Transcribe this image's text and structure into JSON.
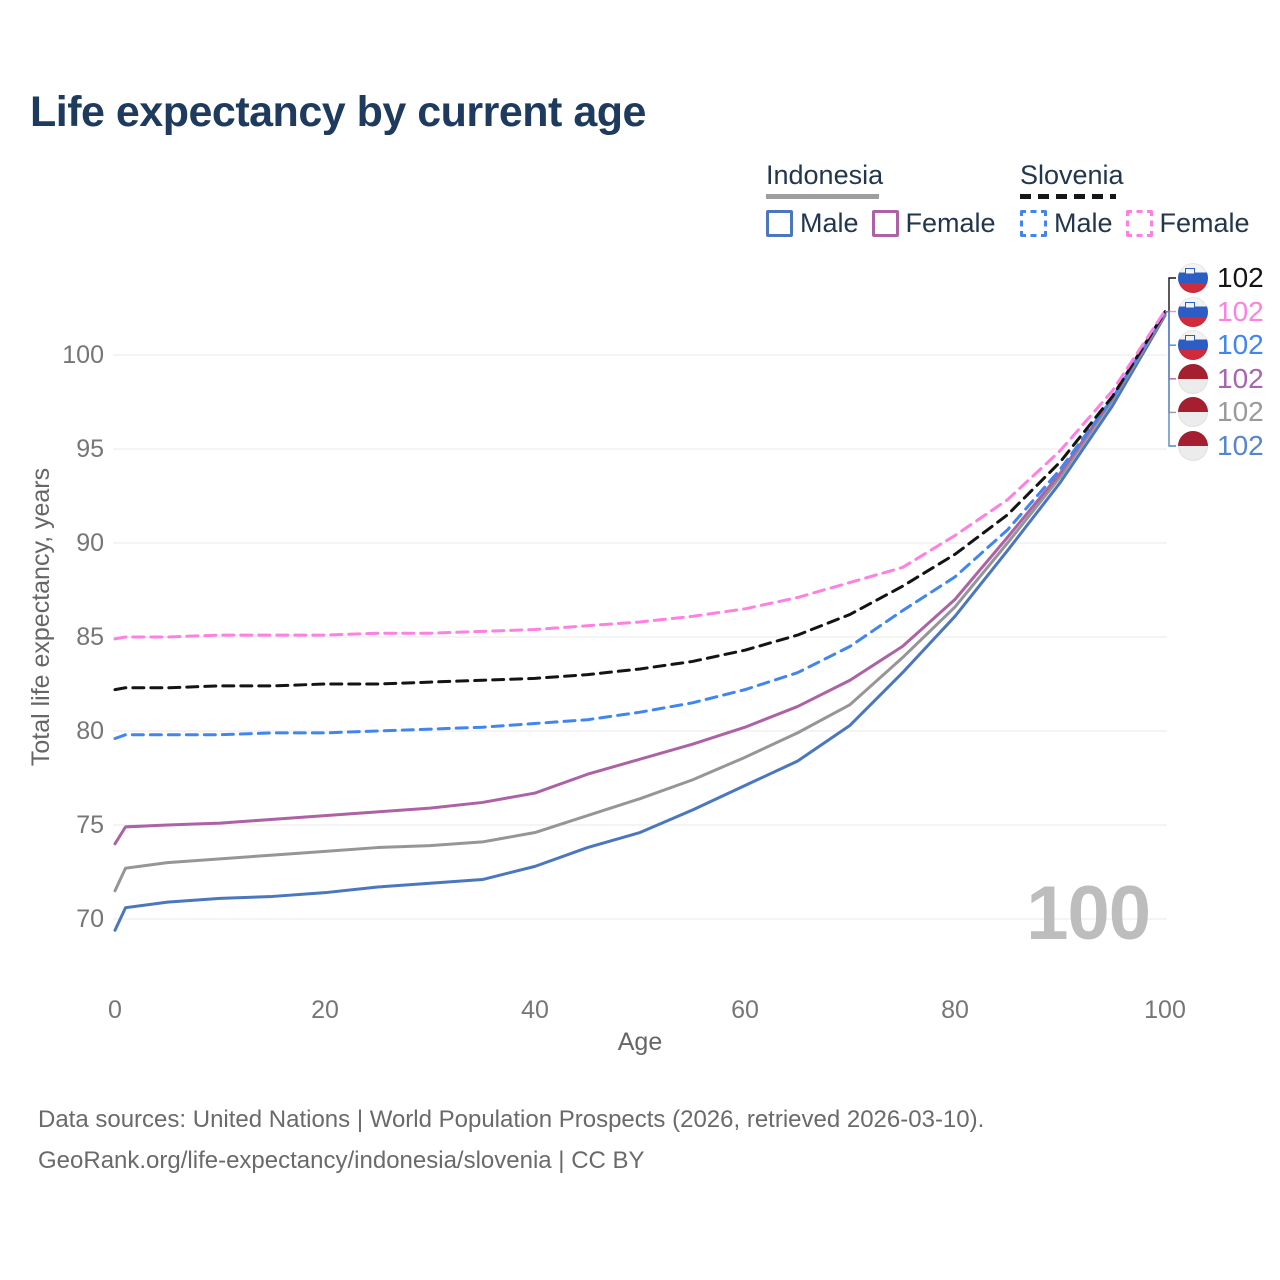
{
  "title": "Life expectancy by current age",
  "watermark": "100",
  "legend": {
    "groups": [
      {
        "label": "Indonesia",
        "line_style": "solid",
        "underline_color": "#9e9e9e",
        "items": [
          {
            "label": "Male",
            "color": "#4a77bd"
          },
          {
            "label": "Female",
            "color": "#ad62a6"
          }
        ]
      },
      {
        "label": "Slovenia",
        "line_style": "dashed",
        "underline_color": "#161616",
        "items": [
          {
            "label": "Male",
            "color": "#4186f0"
          },
          {
            "label": "Female",
            "color": "#ff80e0"
          }
        ]
      }
    ]
  },
  "chart_data": {
    "type": "line",
    "title": "Life expectancy by current age",
    "xlabel": "Age",
    "ylabel": "Total life expectancy, years",
    "x_ticks": [
      0,
      20,
      40,
      60,
      80,
      100
    ],
    "y_ticks": [
      70,
      75,
      80,
      85,
      90,
      95,
      100
    ],
    "xlim": [
      0,
      100
    ],
    "ylim": [
      69,
      103
    ],
    "grid": "horizontal-only",
    "legend_position": "top-right",
    "x": [
      0,
      1,
      5,
      10,
      15,
      20,
      25,
      30,
      35,
      40,
      45,
      50,
      55,
      60,
      65,
      70,
      75,
      80,
      85,
      90,
      95,
      100
    ],
    "series": [
      {
        "name": "Indonesia Male",
        "country": "Indonesia",
        "sex": "male",
        "color": "#4a77bd",
        "dash": false,
        "values": [
          69.4,
          70.6,
          70.9,
          71.1,
          71.2,
          71.4,
          71.7,
          71.9,
          72.1,
          72.8,
          73.8,
          74.6,
          75.8,
          77.1,
          78.4,
          80.3,
          83.1,
          86.1,
          89.6,
          93.2,
          97.3,
          102.1
        ]
      },
      {
        "name": "Indonesia",
        "country": "Indonesia",
        "sex": "both",
        "color": "#969696",
        "dash": false,
        "values": [
          71.5,
          72.7,
          73.0,
          73.2,
          73.4,
          73.6,
          73.8,
          73.9,
          74.1,
          74.6,
          75.5,
          76.4,
          77.4,
          78.6,
          79.9,
          81.4,
          83.9,
          86.6,
          90.0,
          93.5,
          97.6,
          102.15
        ]
      },
      {
        "name": "Indonesia Female",
        "country": "Indonesia",
        "sex": "female",
        "color": "#ad62a6",
        "dash": false,
        "values": [
          74.0,
          74.9,
          75.0,
          75.1,
          75.3,
          75.5,
          75.7,
          75.9,
          76.2,
          76.7,
          77.7,
          78.5,
          79.3,
          80.2,
          81.3,
          82.7,
          84.5,
          87.0,
          90.3,
          93.7,
          97.7,
          102.2
        ]
      },
      {
        "name": "Slovenia Male",
        "country": "Slovenia",
        "sex": "male",
        "color": "#4186f0",
        "dash": true,
        "values": [
          79.6,
          79.8,
          79.8,
          79.8,
          79.9,
          79.9,
          80.0,
          80.1,
          80.2,
          80.4,
          80.6,
          81.0,
          81.5,
          82.2,
          83.1,
          84.5,
          86.4,
          88.2,
          90.7,
          93.9,
          97.7,
          102.25
        ]
      },
      {
        "name": "Slovenia",
        "country": "Slovenia",
        "sex": "both",
        "color": "#141414",
        "dash": true,
        "values": [
          82.2,
          82.3,
          82.3,
          82.4,
          82.4,
          82.5,
          82.5,
          82.6,
          82.7,
          82.8,
          83.0,
          83.3,
          83.7,
          84.3,
          85.1,
          86.2,
          87.7,
          89.4,
          91.5,
          94.3,
          97.8,
          102.3
        ]
      },
      {
        "name": "Slovenia Female",
        "country": "Slovenia",
        "sex": "female",
        "color": "#ff80e0",
        "dash": true,
        "values": [
          84.9,
          85.0,
          85.0,
          85.1,
          85.1,
          85.1,
          85.2,
          85.2,
          85.3,
          85.4,
          85.6,
          85.8,
          86.1,
          86.5,
          87.1,
          87.9,
          88.7,
          90.4,
          92.3,
          94.9,
          98.1,
          102.35
        ]
      }
    ]
  },
  "end_labels": {
    "rows": [
      {
        "series": "Slovenia",
        "flag": "slovenia",
        "value": "102",
        "color": "#141414"
      },
      {
        "series": "Slovenia Female",
        "flag": "slovenia",
        "value": "102",
        "color": "#ff80e0"
      },
      {
        "series": "Slovenia Male",
        "flag": "slovenia",
        "value": "102",
        "color": "#4186f0"
      },
      {
        "series": "Indonesia Female",
        "flag": "indonesia",
        "value": "102",
        "color": "#a864b0"
      },
      {
        "series": "Indonesia",
        "flag": "indonesia",
        "value": "102",
        "color": "#9a9a9a"
      },
      {
        "series": "Indonesia Male",
        "flag": "indonesia",
        "value": "102",
        "color": "#5585cc"
      }
    ]
  },
  "footer": {
    "line1": "Data sources: United Nations | World Population Prospects (2026, retrieved 2026-03-10).",
    "line2": "GeoRank.org/life-expectancy/indonesia/slovenia | CC BY"
  }
}
